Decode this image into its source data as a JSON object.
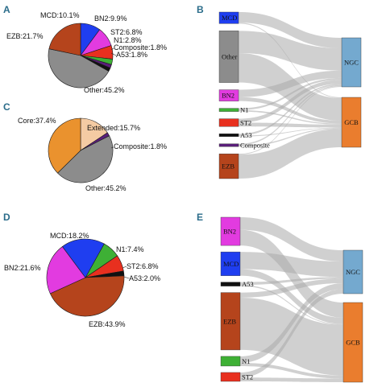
{
  "panels": {
    "A": "A",
    "B": "B",
    "C": "C",
    "D": "D",
    "E": "E"
  },
  "chart_data": [
    {
      "panel": "A",
      "type": "pie",
      "slices": [
        {
          "label": "MCD:10.1%",
          "value": 10.1,
          "color": "#1f3ef0"
        },
        {
          "label": "BN2:9.9%",
          "value": 9.9,
          "color": "#e23be0"
        },
        {
          "label": "ST2:6.8%",
          "value": 6.8,
          "color": "#e8301f"
        },
        {
          "label": "N1:2.8%",
          "value": 2.8,
          "color": "#3eb035"
        },
        {
          "label": "Composite:1.8%",
          "value": 1.8,
          "color": "#5a1f7a"
        },
        {
          "label": "A53:1.8%",
          "value": 1.8,
          "color": "#111111"
        },
        {
          "label": "Other:45.2%",
          "value": 45.2,
          "color": "#8c8c8c"
        },
        {
          "label": "EZB:21.7%",
          "value": 21.7,
          "color": "#b5441c"
        }
      ]
    },
    {
      "panel": "C",
      "type": "pie",
      "slices": [
        {
          "label": "Extended:15.7%",
          "value": 15.7,
          "color": "#f4cba3"
        },
        {
          "label": "Composite:1.8%",
          "value": 1.8,
          "color": "#5a1f7a"
        },
        {
          "label": "Other:45.2%",
          "value": 45.2,
          "color": "#8c8c8c"
        },
        {
          "label": "Core:37.4%",
          "value": 37.4,
          "color": "#ea922e"
        }
      ]
    },
    {
      "panel": "D",
      "type": "pie",
      "slices": [
        {
          "label": "N1:7.4%",
          "value": 7.4,
          "color": "#3eb035"
        },
        {
          "label": "ST2:6.8%",
          "value": 6.8,
          "color": "#e8301f"
        },
        {
          "label": "A53:2.0%",
          "value": 2.0,
          "color": "#111111"
        },
        {
          "label": "EZB:43.9%",
          "value": 43.9,
          "color": "#b5441c"
        },
        {
          "label": "BN2:21.6%",
          "value": 21.6,
          "color": "#e23be0"
        },
        {
          "label": "MCD:18.2%",
          "value": 18.2,
          "color": "#1f3ef0"
        }
      ]
    },
    {
      "panel": "B",
      "type": "sankey",
      "sources": [
        {
          "label": "MCD",
          "value": 10.1,
          "color": "#1f3ef0"
        },
        {
          "label": "Other",
          "value": 45.2,
          "color": "#8c8c8c"
        },
        {
          "label": "BN2",
          "value": 9.9,
          "color": "#e23be0"
        },
        {
          "label": "N1",
          "value": 2.8,
          "color": "#3eb035"
        },
        {
          "label": "ST2",
          "value": 6.8,
          "color": "#e8301f"
        },
        {
          "label": "A53",
          "value": 1.8,
          "color": "#111111"
        },
        {
          "label": "Composite",
          "value": 1.8,
          "color": "#5a1f7a"
        },
        {
          "label": "EZB",
          "value": 21.7,
          "color": "#b5441c"
        }
      ],
      "targets": [
        {
          "label": "NGC",
          "value": 43,
          "color": "#74a9cf"
        },
        {
          "label": "GCB",
          "value": 57,
          "color": "#ea7d2e"
        }
      ],
      "flows": [
        {
          "from": "MCD",
          "to": "NGC",
          "value": 9.2
        },
        {
          "from": "MCD",
          "to": "GCB",
          "value": 0.9
        },
        {
          "from": "Other",
          "to": "NGC",
          "value": 19.5
        },
        {
          "from": "Other",
          "to": "GCB",
          "value": 25.7
        },
        {
          "from": "BN2",
          "to": "NGC",
          "value": 6.5
        },
        {
          "from": "BN2",
          "to": "GCB",
          "value": 3.4
        },
        {
          "from": "N1",
          "to": "NGC",
          "value": 1.6
        },
        {
          "from": "N1",
          "to": "GCB",
          "value": 1.2
        },
        {
          "from": "ST2",
          "to": "NGC",
          "value": 3.4
        },
        {
          "from": "ST2",
          "to": "GCB",
          "value": 3.4
        },
        {
          "from": "A53",
          "to": "NGC",
          "value": 1.2
        },
        {
          "from": "A53",
          "to": "GCB",
          "value": 0.6
        },
        {
          "from": "Composite",
          "to": "NGC",
          "value": 0.9
        },
        {
          "from": "Composite",
          "to": "GCB",
          "value": 0.9
        },
        {
          "from": "EZB",
          "to": "NGC",
          "value": 0.7
        },
        {
          "from": "EZB",
          "to": "GCB",
          "value": 21.0
        }
      ]
    },
    {
      "panel": "E",
      "type": "sankey",
      "sources": [
        {
          "label": "BN2",
          "value": 21.6,
          "color": "#e23be0"
        },
        {
          "label": "MCD",
          "value": 18.2,
          "color": "#1f3ef0"
        },
        {
          "label": "A53",
          "value": 2.0,
          "color": "#111111"
        },
        {
          "label": "EZB",
          "value": 43.9,
          "color": "#b5441c"
        },
        {
          "label": "N1",
          "value": 7.4,
          "color": "#3eb035"
        },
        {
          "label": "ST2",
          "value": 6.8,
          "color": "#e8301f"
        }
      ],
      "targets": [
        {
          "label": "NGC",
          "value": 37,
          "color": "#74a9cf"
        },
        {
          "label": "GCB",
          "value": 63,
          "color": "#ea7d2e"
        }
      ],
      "flows": [
        {
          "from": "BN2",
          "to": "NGC",
          "value": 9.6
        },
        {
          "from": "BN2",
          "to": "GCB",
          "value": 12.0
        },
        {
          "from": "MCD",
          "to": "NGC",
          "value": 13.2
        },
        {
          "from": "MCD",
          "to": "GCB",
          "value": 5.0
        },
        {
          "from": "A53",
          "to": "NGC",
          "value": 1.4
        },
        {
          "from": "A53",
          "to": "GCB",
          "value": 0.6
        },
        {
          "from": "EZB",
          "to": "NGC",
          "value": 3.9
        },
        {
          "from": "EZB",
          "to": "GCB",
          "value": 40.0
        },
        {
          "from": "N1",
          "to": "NGC",
          "value": 5.0
        },
        {
          "from": "N1",
          "to": "GCB",
          "value": 2.4
        },
        {
          "from": "ST2",
          "to": "NGC",
          "value": 3.9
        },
        {
          "from": "ST2",
          "to": "GCB",
          "value": 2.9
        }
      ]
    }
  ]
}
